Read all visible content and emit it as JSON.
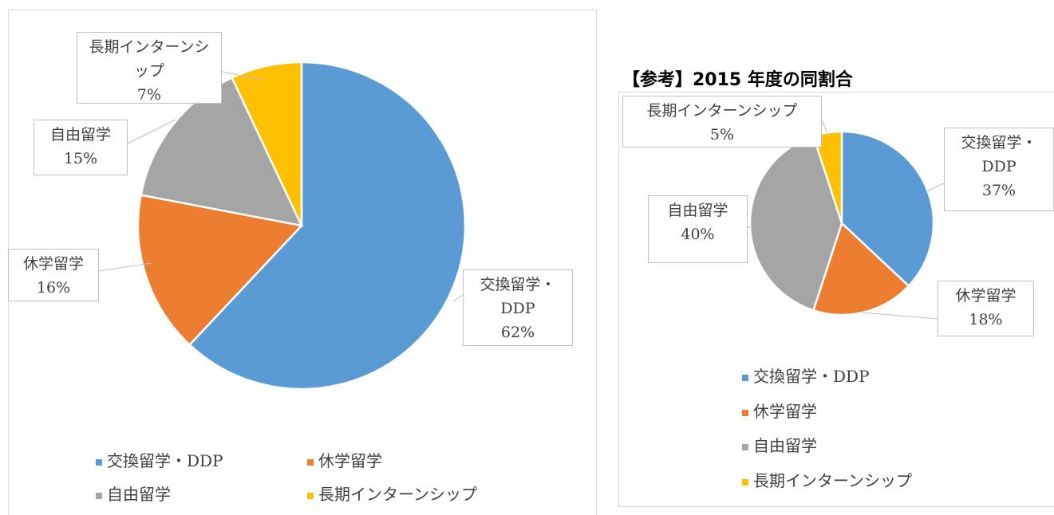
{
  "chart_data": [
    {
      "type": "pie",
      "categories": [
        "交換留学・DDP",
        "休学留学",
        "自由留学",
        "長期インターンシップ"
      ],
      "values": [
        62,
        16,
        15,
        7
      ],
      "value_labels": [
        "62%",
        "16%",
        "15%",
        "7%"
      ],
      "colors": [
        "#5b9bd5",
        "#ed7d31",
        "#a5a5a5",
        "#ffc000"
      ],
      "legend": "bottom"
    },
    {
      "type": "pie",
      "title": "【参考】2015 年度の同割合",
      "categories": [
        "交換留学・DDP",
        "休学留学",
        "自由留学",
        "長期インターンシップ"
      ],
      "values": [
        37,
        18,
        40,
        5
      ],
      "value_labels": [
        "37%",
        "18%",
        "40%",
        "5%"
      ],
      "colors": [
        "#5b9bd5",
        "#ed7d31",
        "#a5a5a5",
        "#ffc000"
      ],
      "legend": "bottom"
    }
  ]
}
